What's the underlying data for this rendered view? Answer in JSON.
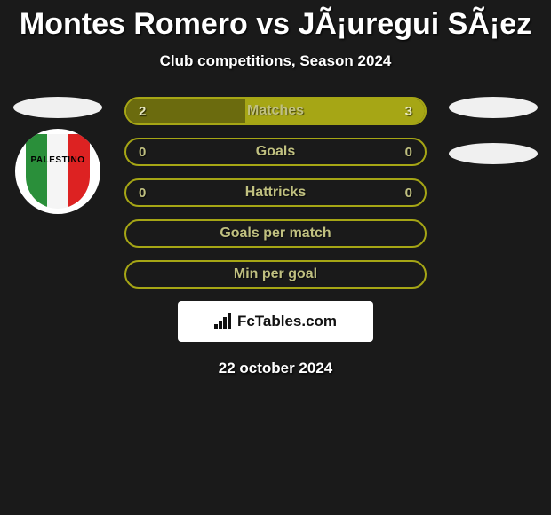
{
  "header": {
    "title": "Montes Romero vs JÃ¡uregui SÃ¡ez",
    "subtitle": "Club competitions, Season 2024"
  },
  "teams": {
    "left": {
      "badge_text": "PALESTINO"
    }
  },
  "stats": [
    {
      "label": "Matches",
      "left_val": "2",
      "right_val": "3",
      "left_pct": 40,
      "right_pct": 60,
      "border_color": "#a6a615",
      "left_fill": "#6b6b0e",
      "right_fill": "#a6a615",
      "label_color": "#c0c080",
      "val_color": "#e8e8c0"
    },
    {
      "label": "Goals",
      "left_val": "0",
      "right_val": "0",
      "left_pct": 0,
      "right_pct": 0,
      "border_color": "#a6a615",
      "left_fill": "transparent",
      "right_fill": "transparent",
      "label_color": "#c0c080",
      "val_color": "#c0c080"
    },
    {
      "label": "Hattricks",
      "left_val": "0",
      "right_val": "0",
      "left_pct": 0,
      "right_pct": 0,
      "border_color": "#a6a615",
      "left_fill": "transparent",
      "right_fill": "transparent",
      "label_color": "#c0c080",
      "val_color": "#c0c080"
    },
    {
      "label": "Goals per match",
      "left_val": "",
      "right_val": "",
      "left_pct": 0,
      "right_pct": 0,
      "border_color": "#a6a615",
      "left_fill": "transparent",
      "right_fill": "transparent",
      "label_color": "#c0c080",
      "val_color": "#c0c080"
    },
    {
      "label": "Min per goal",
      "left_val": "",
      "right_val": "",
      "left_pct": 0,
      "right_pct": 0,
      "border_color": "#a6a615",
      "left_fill": "transparent",
      "right_fill": "transparent",
      "label_color": "#c0c080",
      "val_color": "#c0c080"
    }
  ],
  "footer": {
    "brand": "FcTables.com",
    "date": "22 october 2024"
  },
  "colors": {
    "bg": "#1a1a1a"
  }
}
